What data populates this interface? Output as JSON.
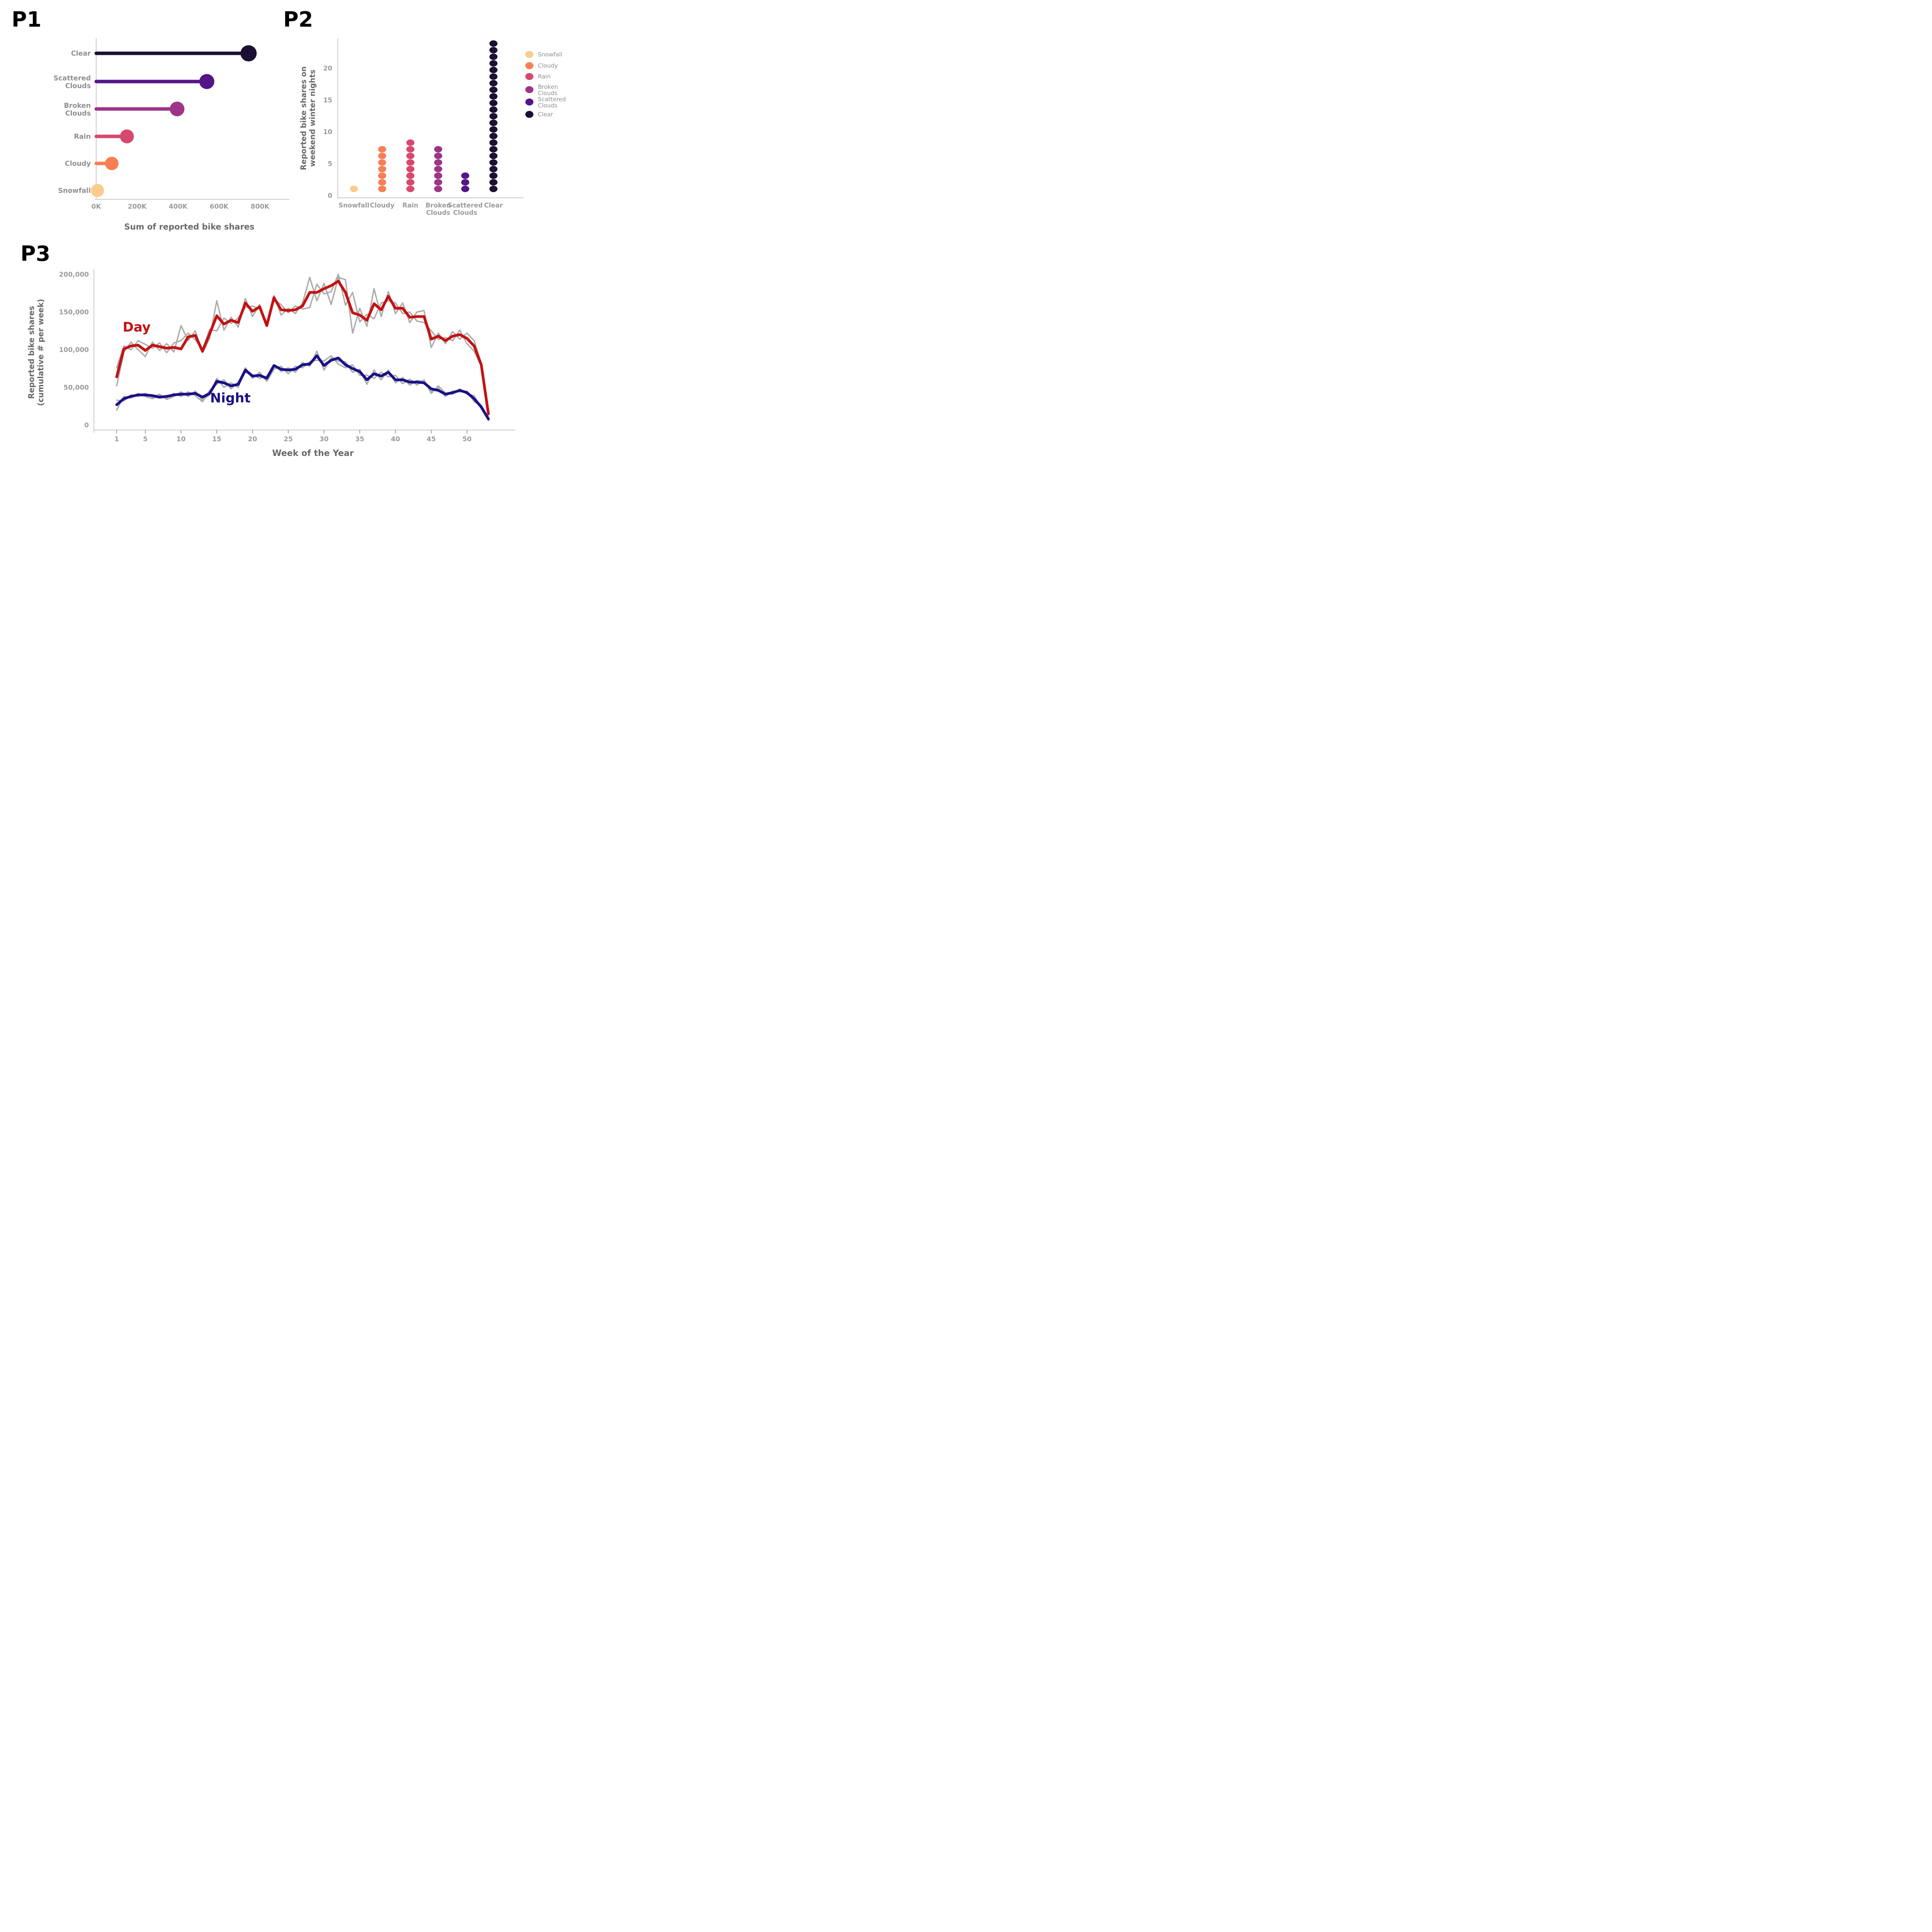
{
  "headings": {
    "p1": "P1",
    "p2": "P2",
    "p3": "P3"
  },
  "palette": {
    "snowfall": "#fbcc8c",
    "cloudy": "#f87f54",
    "rain": "#d8486e",
    "broken_clouds": "#9c3587",
    "scattered_clouds": "#551586",
    "clear": "#1b1033",
    "day_red": "#c51111",
    "night_navy": "#1a1187",
    "raw_gray": "#ababab",
    "axis_gray": "#d2d2d2",
    "tick_gray": "#9b9b9b",
    "label_gray": "#8f8f8f",
    "title_gray": "#696969"
  },
  "chart_data": [
    {
      "id": "P1",
      "type": "bar",
      "subtype": "lollipop",
      "orientation": "horizontal",
      "xlabel": "Sum of reported bike shares",
      "categories": [
        "Clear",
        "Scattered Clouds",
        "Broken Clouds",
        "Rain",
        "Cloudy",
        "Snowfall"
      ],
      "category_label_lines": [
        [
          "Clear"
        ],
        [
          "Scattered",
          "Clouds"
        ],
        [
          "Broken",
          "Clouds"
        ],
        [
          "Rain"
        ],
        [
          "Cloudy"
        ],
        [
          "Snowfall"
        ]
      ],
      "values": [
        744000,
        540000,
        395000,
        150000,
        76000,
        6000
      ],
      "colors": [
        "#1b1033",
        "#551586",
        "#9c3587",
        "#d8486e",
        "#f87f54",
        "#fbcc8c"
      ],
      "dot_radii": [
        21,
        19.5,
        19,
        18,
        17.5,
        17
      ],
      "x_ticks": [
        "0K",
        "200K",
        "400K",
        "600K",
        "800K"
      ],
      "x_tick_values": [
        0,
        200000,
        400000,
        600000,
        800000
      ],
      "xlim": [
        0,
        800000
      ],
      "grid": false
    },
    {
      "id": "P2",
      "type": "scatter",
      "subtype": "stacked-dot-plot",
      "ylabel": "Reported bike shares on weekend winter nights",
      "ylabel_lines": [
        "Reported bike shares on",
        "weekend winter nights"
      ],
      "categories": [
        "Snowfall",
        "Cloudy",
        "Rain",
        "Broken Clouds",
        "Scattered Clouds",
        "Clear"
      ],
      "category_label_lines": [
        [
          "Snowfall"
        ],
        [
          "Cloudy"
        ],
        [
          "Rain"
        ],
        [
          "Broken",
          "Clouds"
        ],
        [
          "Scattered",
          "Clouds"
        ],
        [
          "Clear"
        ]
      ],
      "counts": [
        1,
        7,
        8,
        7,
        3,
        23
      ],
      "colors": [
        "#fbcc8c",
        "#f87f54",
        "#d8486e",
        "#9c3587",
        "#551586",
        "#1b1033"
      ],
      "y_ticks": [
        0,
        5,
        10,
        15,
        20
      ],
      "ylim": [
        0,
        24
      ],
      "grid": false,
      "legend": {
        "position": "right",
        "entries": [
          "Snowfall",
          "Cloudy",
          "Rain",
          "Broken Clouds",
          "Scattered Clouds",
          "Clear"
        ],
        "entry_lines": [
          [
            "Snowfall"
          ],
          [
            "Cloudy"
          ],
          [
            "Rain"
          ],
          [
            "Broken",
            "Clouds"
          ],
          [
            "Scattered",
            "Clouds"
          ],
          [
            "Clear"
          ]
        ],
        "colors": [
          "#fbcc8c",
          "#f87f54",
          "#d8486e",
          "#9c3587",
          "#551586",
          "#1b1033"
        ]
      }
    },
    {
      "id": "P3",
      "type": "line",
      "xlabel": "Week of the Year",
      "ylabel": "Reported bike shares (cumulative # per week)",
      "ylabel_lines": [
        "Reported bike shares",
        "(cumulative # per week)"
      ],
      "x_ticks": [
        1,
        5,
        10,
        15,
        20,
        25,
        30,
        35,
        40,
        45,
        50
      ],
      "y_ticks": [
        "0",
        "50,000",
        "100,000",
        "150,000",
        "200,000"
      ],
      "y_tick_values": [
        0,
        50000,
        100000,
        150000,
        200000
      ],
      "xlim": [
        1,
        53
      ],
      "ylim": [
        0,
        200000
      ],
      "grid": false,
      "series": [
        {
          "name": "Day raw A",
          "role": "raw",
          "color": "#ababab",
          "width": 3.5,
          "values_thousands": [
            52,
            97,
            110,
            100,
            91,
            110,
            99,
            108,
            97,
            132,
            112,
            125,
            96,
            115,
            165,
            126,
            143,
            130,
            168,
            144,
            160,
            131,
            172,
            146,
            155,
            148,
            162,
            196,
            165,
            188,
            160,
            196,
            193,
            122,
            155,
            131,
            181,
            144,
            177,
            148,
            162,
            136,
            150,
            152,
            103,
            122,
            108,
            124,
            114,
            122,
            112,
            82,
            13
          ]
        },
        {
          "name": "Day raw B",
          "role": "raw",
          "color": "#ababab",
          "width": 3.5,
          "values_thousands": [
            76,
            105,
            100,
            112,
            107,
            102,
            109,
            96,
            109,
            112,
            122,
            113,
            100,
            127,
            125,
            142,
            135,
            142,
            156,
            158,
            154,
            133,
            166,
            160,
            149,
            158,
            154,
            156,
            187,
            174,
            177,
            200,
            159,
            176,
            137,
            147,
            141,
            162,
            165,
            162,
            148,
            150,
            138,
            136,
            125,
            114,
            116,
            112,
            126,
            108,
            98,
            78,
            17
          ]
        },
        {
          "name": "Night raw A",
          "role": "raw",
          "color": "#ababab",
          "width": 3.5,
          "values_thousands": [
            20,
            38,
            36,
            42,
            38,
            35,
            39,
            36,
            42,
            38,
            44,
            39,
            31,
            46,
            54,
            60,
            48,
            57,
            70,
            67,
            62,
            65,
            80,
            71,
            76,
            70,
            83,
            78,
            98,
            73,
            89,
            85,
            84,
            70,
            74,
            54,
            73,
            60,
            73,
            56,
            63,
            53,
            59,
            58,
            44,
            49,
            38,
            45,
            44,
            45,
            31,
            26,
            6
          ]
        },
        {
          "name": "Night raw B",
          "role": "raw",
          "color": "#ababab",
          "width": 3.5,
          "values_thousands": [
            33,
            32,
            40,
            38,
            42,
            37,
            41,
            34,
            38,
            44,
            38,
            45,
            33,
            40,
            62,
            50,
            56,
            50,
            76,
            62,
            70,
            58,
            74,
            78,
            68,
            78,
            76,
            84,
            86,
            85,
            92,
            81,
            76,
            80,
            66,
            66,
            62,
            70,
            64,
            66,
            55,
            61,
            53,
            60,
            42,
            52,
            42,
            41,
            48,
            41,
            39,
            22,
            10
          ]
        },
        {
          "name": "Day",
          "role": "smooth",
          "color": "#c51111",
          "width": 7,
          "values_thousands": [
            64,
            101,
            105,
            106,
            99,
            106,
            104,
            102,
            103,
            101,
            117,
            119,
            98,
            121,
            145,
            134,
            139,
            136,
            162,
            151,
            157,
            132,
            169,
            153,
            152,
            153,
            158,
            176,
            176,
            181,
            185,
            191,
            176,
            149,
            146,
            139,
            161,
            153,
            171,
            155,
            155,
            143,
            144,
            144,
            114,
            118,
            112,
            118,
            120,
            115,
            105,
            80,
            15
          ]
        },
        {
          "name": "Night",
          "role": "smooth",
          "color": "#1a1187",
          "width": 7,
          "values_thousands": [
            27,
            35,
            38,
            40,
            40,
            39,
            37,
            38,
            40,
            41,
            41,
            42,
            37,
            42,
            58,
            56,
            52,
            54,
            73,
            65,
            66,
            62,
            79,
            74,
            73,
            74,
            80,
            81,
            92,
            79,
            86,
            89,
            80,
            75,
            71,
            60,
            68,
            65,
            70,
            60,
            60,
            57,
            57,
            56,
            48,
            46,
            41,
            43,
            46,
            43,
            35,
            24,
            8
          ]
        }
      ],
      "annotations": [
        {
          "text": "Day",
          "color": "#c51111",
          "x_week": 3.8,
          "y_value_thousands": 124
        },
        {
          "text": "Night",
          "color": "#1a1187",
          "x_week": 16.9,
          "y_value_thousands": 30
        }
      ]
    }
  ]
}
